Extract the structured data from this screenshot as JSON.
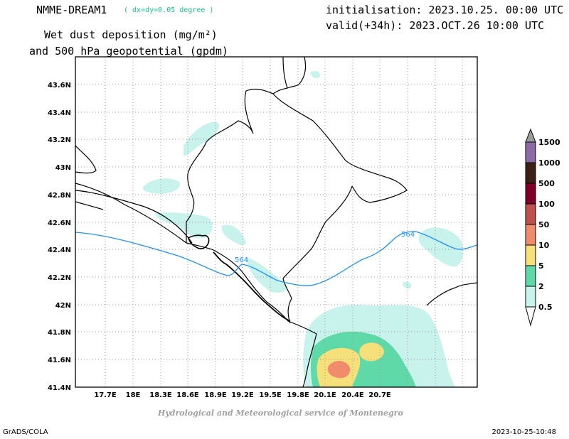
{
  "header": {
    "model": "NMME-DREAM1",
    "resolution": "( dx=dy=0.05 degree )",
    "initialisation": "initialisation: 2023.10.25. 00:00 UTC",
    "valid": "valid(+34h): 2023.OCT.26 10:00 UTC",
    "title_line1": "Wet dust deposition (mg/m²)",
    "title_line2": "and 500 hPa geopotential (gpdm)"
  },
  "map": {
    "lat_labels": [
      "43.6N",
      "43.4N",
      "43.2N",
      "43N",
      "42.8N",
      "42.6N",
      "42.4N",
      "42.2N",
      "42N",
      "41.8N",
      "41.6N",
      "41.4N"
    ],
    "lon_labels": [
      "17.7E",
      "18E",
      "18.3E",
      "18.6E",
      "18.9E",
      "19.2E",
      "19.5E",
      "19.8E",
      "20.1E",
      "20.4E",
      "20.7E"
    ],
    "contour_labels": [
      "564",
      "564"
    ],
    "contour_color": "#1e90ff"
  },
  "colorbar": {
    "levels": [
      "1500",
      "1000",
      "500",
      "100",
      "50",
      "10",
      "5",
      "2",
      "0.5"
    ],
    "colors": [
      "#9b9b9b",
      "#8c6aa6",
      "#3d2116",
      "#7e0027",
      "#c0504d",
      "#f08c6c",
      "#f5e07a",
      "#5fd9a8",
      "#c8f2ec"
    ]
  },
  "footer": {
    "credit": "Hydrological and Meteorological service of Montenegro",
    "left": "GrADS/COLA",
    "right": "2023-10-25-10:48"
  }
}
